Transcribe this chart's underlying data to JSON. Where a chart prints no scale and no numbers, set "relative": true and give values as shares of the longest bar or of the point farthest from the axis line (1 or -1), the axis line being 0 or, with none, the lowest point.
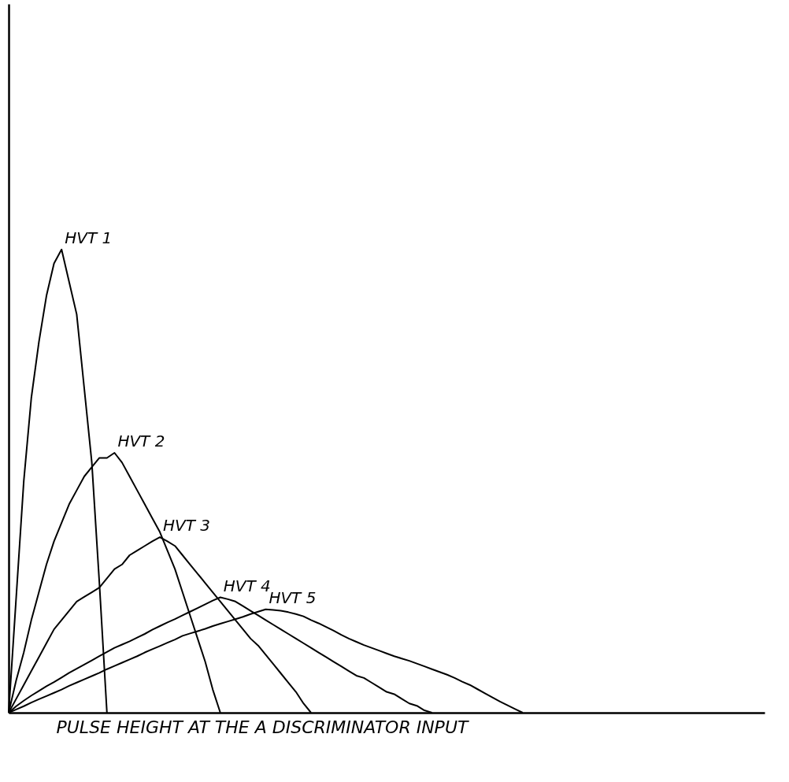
{
  "chart_data": {
    "type": "line",
    "relative": true,
    "xlabel": "PULSE HEIGHT AT THE A DISCRIMINATOR INPUT",
    "tick_labels": false,
    "grid": false,
    "marker": "none",
    "line_style": "solid",
    "categories": [
      null,
      null,
      null,
      null,
      null,
      null,
      null,
      null,
      null,
      null,
      null,
      null,
      null,
      null,
      null,
      null,
      null,
      null,
      null,
      null,
      null,
      null,
      null,
      null,
      null,
      null,
      null,
      null,
      null,
      null,
      null,
      null,
      null,
      null,
      null,
      null,
      null,
      null,
      null,
      null,
      null,
      null,
      null,
      null,
      null,
      null,
      null,
      null,
      null,
      null,
      null,
      null,
      null,
      null,
      null,
      null,
      null,
      null,
      null,
      null,
      null,
      null,
      null,
      null,
      null,
      null,
      null,
      null,
      null,
      null,
      null,
      null,
      null,
      null,
      null,
      null,
      null,
      null,
      null,
      null,
      null,
      null,
      null,
      null,
      null,
      null,
      null,
      null,
      null,
      null,
      null,
      null,
      null,
      null,
      null,
      null,
      null,
      null,
      null,
      null,
      null
    ],
    "series": [
      {
        "name": "HVT 1",
        "color": "#000000",
        "values": [
          0,
          0.25,
          0.5,
          0.68,
          0.8,
          0.9,
          0.97,
          1.0,
          0.93,
          0.86,
          0.7,
          0.54,
          0.28,
          0,
          null,
          null,
          null,
          null,
          null,
          null,
          null,
          null,
          null,
          null,
          null,
          null,
          null,
          null,
          null,
          null,
          null,
          null,
          null,
          null,
          null,
          null,
          null,
          null,
          null,
          null,
          null,
          null,
          null,
          null,
          null,
          null,
          null,
          null,
          null,
          null,
          null,
          null,
          null,
          null,
          null,
          null,
          null,
          null,
          null,
          null,
          null,
          null,
          null,
          null,
          null,
          null,
          null,
          null,
          null,
          null,
          null,
          null,
          null,
          null,
          null,
          null,
          null,
          null,
          null,
          null,
          null,
          null,
          null,
          null,
          null,
          null,
          null,
          null,
          null,
          null,
          null,
          null,
          null,
          null,
          null,
          null,
          null,
          null,
          null,
          null,
          null
        ]
      },
      {
        "name": "HVT 2",
        "color": "#000000",
        "values": [
          0,
          0.07,
          0.13,
          0.2,
          0.26,
          0.32,
          0.37,
          0.41,
          0.45,
          0.48,
          0.51,
          0.53,
          0.55,
          0.55,
          0.561,
          0.54,
          0.51,
          0.48,
          0.45,
          0.42,
          0.39,
          0.35,
          0.31,
          0.26,
          0.21,
          0.16,
          0.11,
          0.05,
          0,
          null,
          null,
          null,
          null,
          null,
          null,
          null,
          null,
          null,
          null,
          null,
          null,
          null,
          null,
          null,
          null,
          null,
          null,
          null,
          null,
          null,
          null,
          null,
          null,
          null,
          null,
          null,
          null,
          null,
          null,
          null,
          null,
          null,
          null,
          null,
          null,
          null,
          null,
          null,
          null,
          null,
          null,
          null,
          null,
          null,
          null,
          null,
          null,
          null,
          null,
          null,
          null,
          null,
          null,
          null,
          null,
          null,
          null,
          null,
          null,
          null,
          null,
          null,
          null,
          null,
          null,
          null,
          null,
          null,
          null,
          null,
          null
        ]
      },
      {
        "name": "HVT 3",
        "color": "#000000",
        "values": [
          0,
          0.03,
          0.06,
          0.09,
          0.12,
          0.15,
          0.18,
          0.2,
          0.22,
          0.24,
          0.25,
          0.26,
          0.27,
          0.29,
          0.31,
          0.32,
          0.34,
          0.35,
          0.36,
          0.37,
          0.379,
          0.37,
          0.36,
          0.34,
          0.32,
          0.3,
          0.28,
          0.26,
          0.24,
          0.22,
          0.2,
          0.18,
          0.16,
          0.145,
          0.125,
          0.105,
          0.085,
          0.065,
          0.045,
          0.02,
          0,
          null,
          null,
          null,
          null,
          null,
          null,
          null,
          null,
          null,
          null,
          null,
          null,
          null,
          null,
          null,
          null,
          null,
          null,
          null,
          null,
          null,
          null,
          null,
          null,
          null,
          null,
          null,
          null,
          null,
          null,
          null,
          null,
          null,
          null,
          null,
          null,
          null,
          null,
          null,
          null,
          null,
          null,
          null,
          null,
          null,
          null,
          null,
          null,
          null,
          null,
          null,
          null,
          null,
          null,
          null,
          null,
          null,
          null,
          null,
          null
        ]
      },
      {
        "name": "HVT 4",
        "color": "#000000",
        "values": [
          0,
          0.014,
          0.026,
          0.037,
          0.047,
          0.057,
          0.066,
          0.076,
          0.086,
          0.095,
          0.104,
          0.113,
          0.122,
          0.131,
          0.14,
          0.147,
          0.154,
          0.162,
          0.17,
          0.179,
          0.187,
          0.195,
          0.202,
          0.21,
          0.218,
          0.226,
          0.234,
          0.242,
          0.249,
          0.245,
          0.24,
          0.23,
          0.22,
          0.21,
          0.2,
          0.19,
          0.18,
          0.17,
          0.16,
          0.15,
          0.14,
          0.13,
          0.12,
          0.11,
          0.1,
          0.09,
          0.08,
          0.075,
          0.065,
          0.055,
          0.045,
          0.04,
          0.03,
          0.02,
          0.015,
          0.005,
          0,
          null,
          null,
          null,
          null,
          null,
          null,
          null,
          null,
          null,
          null,
          null,
          null,
          null,
          null,
          null,
          null,
          null,
          null,
          null,
          null,
          null,
          null,
          null,
          null,
          null,
          null,
          null,
          null,
          null,
          null,
          null,
          null,
          null,
          null,
          null,
          null,
          null,
          null,
          null,
          null,
          null,
          null,
          null,
          null
        ]
      },
      {
        "name": "HVT 5",
        "color": "#000000",
        "values": [
          0,
          0.007,
          0.014,
          0.022,
          0.029,
          0.036,
          0.043,
          0.05,
          0.058,
          0.065,
          0.072,
          0.079,
          0.086,
          0.094,
          0.101,
          0.108,
          0.115,
          0.122,
          0.13,
          0.137,
          0.144,
          0.151,
          0.158,
          0.166,
          0.171,
          0.176,
          0.181,
          0.187,
          0.192,
          0.197,
          0.202,
          0.207,
          0.213,
          0.218,
          0.223,
          0.222,
          0.22,
          0.217,
          0.213,
          0.208,
          0.2,
          0.193,
          0.185,
          0.177,
          0.168,
          0.16,
          0.153,
          0.146,
          0.14,
          0.134,
          0.128,
          0.122,
          0.117,
          0.112,
          0.106,
          0.1,
          0.094,
          0.088,
          0.082,
          0.075,
          0.067,
          0.06,
          0.051,
          0.042,
          0.033,
          0.024,
          0.016,
          0.008,
          0,
          null,
          null,
          null,
          null,
          null,
          null,
          null,
          null,
          null,
          null,
          null,
          null,
          null,
          null,
          null,
          null,
          null,
          null,
          null,
          null,
          null,
          null,
          null,
          null,
          null,
          null,
          null,
          null,
          null,
          null,
          null,
          null
        ]
      }
    ]
  }
}
